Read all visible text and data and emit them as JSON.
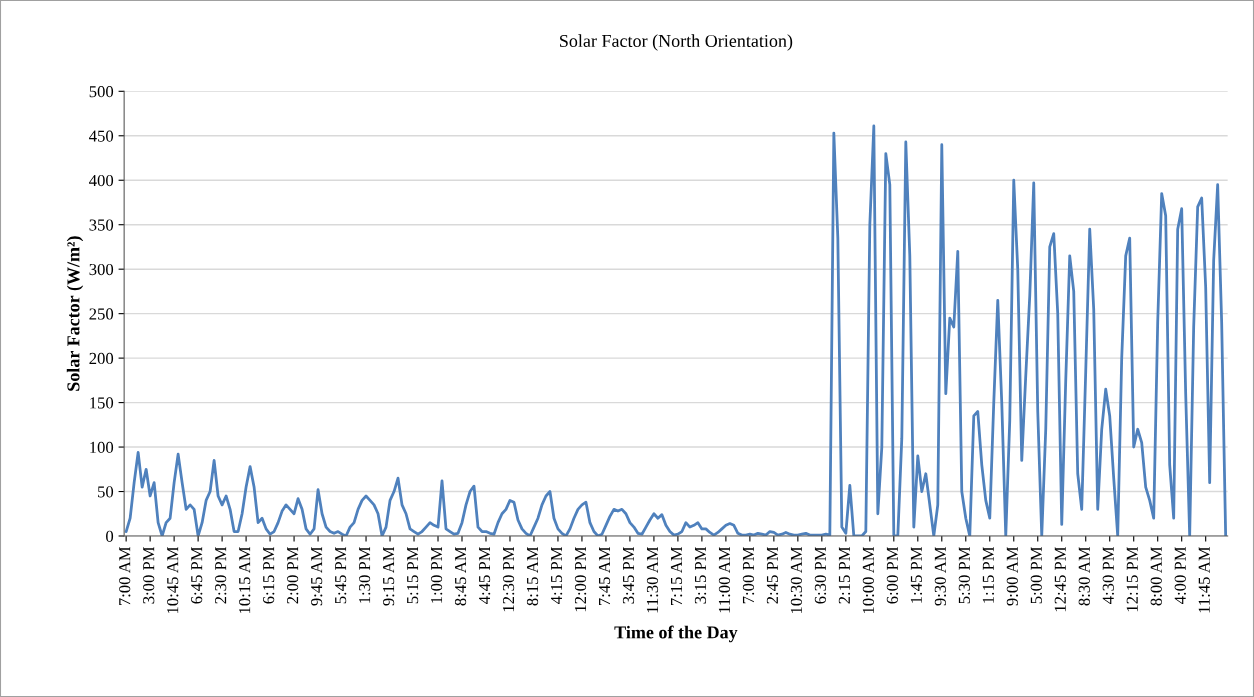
{
  "chart_data": {
    "type": "line",
    "title": "Solar Factor (North Orientation)",
    "xlabel": "Time of the Day",
    "ylabel": "Solar Factor (W/m²)",
    "categories": [
      "7:00 AM",
      null,
      null,
      null,
      null,
      null,
      "3:00 PM",
      null,
      null,
      null,
      null,
      null,
      "10:45 AM",
      null,
      null,
      null,
      null,
      null,
      "6:45 PM",
      null,
      null,
      null,
      null,
      null,
      "2:30 PM",
      null,
      null,
      null,
      null,
      null,
      "10:15 AM",
      null,
      null,
      null,
      null,
      null,
      "6:15 PM",
      null,
      null,
      null,
      null,
      null,
      "2:00 PM",
      null,
      null,
      null,
      null,
      null,
      "9:45 AM",
      null,
      null,
      null,
      null,
      null,
      "5:45 PM",
      null,
      null,
      null,
      null,
      null,
      "1:30 PM",
      null,
      null,
      null,
      null,
      null,
      "9:15 AM",
      null,
      null,
      null,
      null,
      null,
      "5:15 PM",
      null,
      null,
      null,
      null,
      null,
      "1:00 PM",
      null,
      null,
      null,
      null,
      null,
      "8:45 AM",
      null,
      null,
      null,
      null,
      null,
      "4:45 PM",
      null,
      null,
      null,
      null,
      null,
      "12:30 PM",
      null,
      null,
      null,
      null,
      null,
      "8:15 AM",
      null,
      null,
      null,
      null,
      null,
      "4:15 PM",
      null,
      null,
      null,
      null,
      null,
      "12:00 PM",
      null,
      null,
      null,
      null,
      null,
      "7:45 AM",
      null,
      null,
      null,
      null,
      null,
      "3:45 PM",
      null,
      null,
      null,
      null,
      null,
      "11:30 AM",
      null,
      null,
      null,
      null,
      null,
      "7:15 AM",
      null,
      null,
      null,
      null,
      null,
      "3:15 PM",
      null,
      null,
      null,
      null,
      null,
      "11:00 AM",
      null,
      null,
      null,
      null,
      null,
      "7:00 PM",
      null,
      null,
      null,
      null,
      null,
      "2:45 PM",
      null,
      null,
      null,
      null,
      null,
      "10:30 AM",
      null,
      null,
      null,
      null,
      null,
      "6:30 PM",
      null,
      null,
      null,
      null,
      null,
      "2:15 PM",
      null,
      null,
      null,
      null,
      null,
      "10:00 AM",
      null,
      null,
      null,
      null,
      null,
      "6:00 PM",
      null,
      null,
      null,
      null,
      null,
      "1:45 PM",
      null,
      null,
      null,
      null,
      null,
      "9:30 AM",
      null,
      null,
      null,
      null,
      null,
      "5:30 PM",
      null,
      null,
      null,
      null,
      null,
      "1:15 PM",
      null,
      null,
      null,
      null,
      null,
      "9:00 AM",
      null,
      null,
      null,
      null,
      null,
      "5:00 PM",
      null,
      null,
      null,
      null,
      null,
      "12:45 PM",
      null,
      null,
      null,
      null,
      null,
      "8:30 AM",
      null,
      null,
      null,
      null,
      null,
      "4:30 PM",
      null,
      null,
      null,
      null,
      null,
      "12:15 PM",
      null,
      null,
      null,
      null,
      null,
      "8:00 AM",
      null,
      null,
      null,
      null,
      null,
      "4:00 PM",
      null,
      null,
      null,
      null,
      null,
      "11:45 AM",
      null,
      null,
      null,
      null,
      null
    ],
    "series": [
      {
        "color": "#4f81bd",
        "values": [
          5,
          20,
          60,
          94,
          55,
          75,
          45,
          60,
          15,
          0,
          15,
          20,
          60,
          92,
          60,
          30,
          35,
          30,
          0,
          15,
          40,
          50,
          85,
          45,
          35,
          45,
          30,
          5,
          5,
          25,
          55,
          78,
          55,
          15,
          20,
          8,
          2,
          5,
          15,
          28,
          35,
          30,
          25,
          42,
          30,
          8,
          2,
          8,
          52,
          25,
          10,
          5,
          3,
          5,
          2,
          0,
          10,
          15,
          30,
          40,
          45,
          40,
          35,
          25,
          0,
          10,
          40,
          50,
          65,
          35,
          25,
          8,
          5,
          2,
          5,
          10,
          15,
          12,
          10,
          62,
          8,
          5,
          2,
          3,
          15,
          35,
          50,
          56,
          10,
          5,
          5,
          3,
          2,
          15,
          25,
          30,
          40,
          38,
          18,
          8,
          3,
          0,
          10,
          20,
          35,
          45,
          50,
          20,
          8,
          3,
          0,
          8,
          20,
          30,
          35,
          38,
          15,
          5,
          0,
          2,
          12,
          22,
          30,
          28,
          30,
          25,
          15,
          10,
          3,
          2,
          10,
          18,
          25,
          20,
          24,
          12,
          5,
          1,
          2,
          5,
          15,
          10,
          12,
          15,
          8,
          8,
          4,
          1,
          4,
          8,
          12,
          14,
          12,
          3,
          1,
          1,
          2,
          1,
          3,
          2,
          1,
          5,
          4,
          1,
          2,
          4,
          2,
          1,
          1,
          2,
          3,
          1,
          1,
          1,
          1,
          2,
          1,
          453,
          335,
          10,
          3,
          57,
          0,
          0,
          0,
          5,
          350,
          461,
          25,
          100,
          430,
          395,
          0,
          0,
          110,
          443,
          315,
          10,
          90,
          50,
          70,
          35,
          0,
          35,
          440,
          160,
          245,
          235,
          320,
          50,
          20,
          0,
          135,
          140,
          80,
          40,
          20,
          150,
          265,
          150,
          0,
          130,
          400,
          300,
          85,
          180,
          270,
          397,
          140,
          0,
          120,
          325,
          340,
          250,
          13,
          175,
          315,
          275,
          70,
          30,
          185,
          345,
          255,
          30,
          120,
          165,
          135,
          65,
          0,
          200,
          315,
          335,
          100,
          120,
          105,
          55,
          40,
          20,
          240,
          385,
          360,
          80,
          20,
          345,
          368,
          160,
          0,
          235,
          370,
          380,
          280,
          60,
          310,
          395,
          240,
          0
        ]
      }
    ],
    "ylim": [
      0,
      500
    ],
    "yticks": [
      0,
      50,
      100,
      150,
      200,
      250,
      300,
      350,
      400,
      450,
      500
    ],
    "grid": "y"
  }
}
